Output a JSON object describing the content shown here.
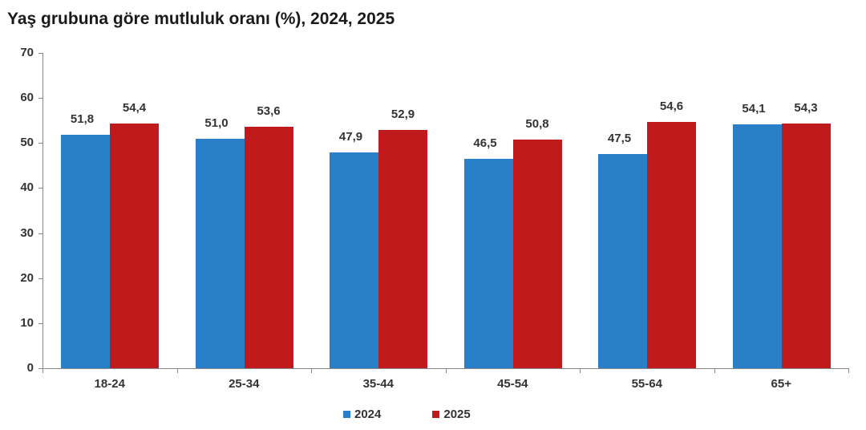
{
  "title": "Yaş grubuna göre mutluluk oranı (%), 2024, 2025",
  "colors": {
    "2024": "#2a7fc9",
    "2025": "#c01a1d"
  },
  "legend": [
    {
      "label": "2024",
      "color": "#2a7fc9"
    },
    {
      "label": "2025",
      "color": "#c01a1d"
    }
  ],
  "yticks": [
    "0",
    "10",
    "20",
    "30",
    "40",
    "50",
    "60",
    "70"
  ],
  "categories": [
    "18-24",
    "25-34",
    "35-44",
    "45-54",
    "55-64",
    "65+"
  ],
  "labels": {
    "2024": [
      "51,8",
      "51,0",
      "47,9",
      "46,5",
      "47,5",
      "54,1"
    ],
    "2025": [
      "54,4",
      "53,6",
      "52,9",
      "50,8",
      "54,6",
      "54,3"
    ]
  },
  "chart_data": {
    "type": "bar",
    "title": "Yaş grubuna göre mutluluk oranı (%), 2024, 2025",
    "categories": [
      "18-24",
      "25-34",
      "35-44",
      "45-54",
      "55-64",
      "65+"
    ],
    "series": [
      {
        "name": "2024",
        "color": "#2a7fc9",
        "values": [
          51.8,
          51.0,
          47.9,
          46.5,
          47.5,
          54.1
        ]
      },
      {
        "name": "2025",
        "color": "#c01a1d",
        "values": [
          54.4,
          53.6,
          52.9,
          50.8,
          54.6,
          54.3
        ]
      }
    ],
    "xlabel": "",
    "ylabel": "",
    "ylim": [
      0,
      70
    ],
    "yticks": [
      0,
      10,
      20,
      30,
      40,
      50,
      60,
      70
    ],
    "grid": false,
    "legend_position": "bottom",
    "data_labels": true
  }
}
